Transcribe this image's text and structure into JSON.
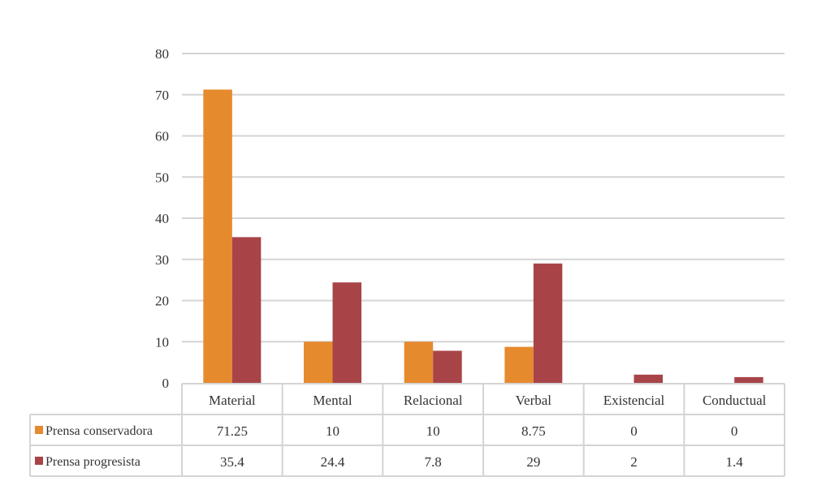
{
  "chart_data": {
    "type": "bar",
    "categories": [
      "Material",
      "Mental",
      "Relacional",
      "Verbal",
      "Existencial",
      "Conductual"
    ],
    "series": [
      {
        "name": "Prensa conservadora",
        "color": "#E68A2E",
        "values": [
          71.25,
          10,
          10,
          8.75,
          0,
          0
        ],
        "labels": [
          "71.25",
          "10",
          "10",
          "8.75",
          "0",
          "0"
        ]
      },
      {
        "name": "Prensa progresista",
        "color": "#A84448",
        "values": [
          35.4,
          24.4,
          7.8,
          29,
          2,
          1.4
        ],
        "labels": [
          "35.4",
          "24.4",
          "7.8",
          "29",
          "2",
          "1.4"
        ]
      }
    ],
    "ylim": [
      0,
      80
    ],
    "yticks": [
      "0",
      "10",
      "20",
      "30",
      "40",
      "50",
      "60",
      "70",
      "80"
    ],
    "grid": true,
    "legend": "data-table",
    "title": "",
    "xlabel": "",
    "ylabel": ""
  }
}
